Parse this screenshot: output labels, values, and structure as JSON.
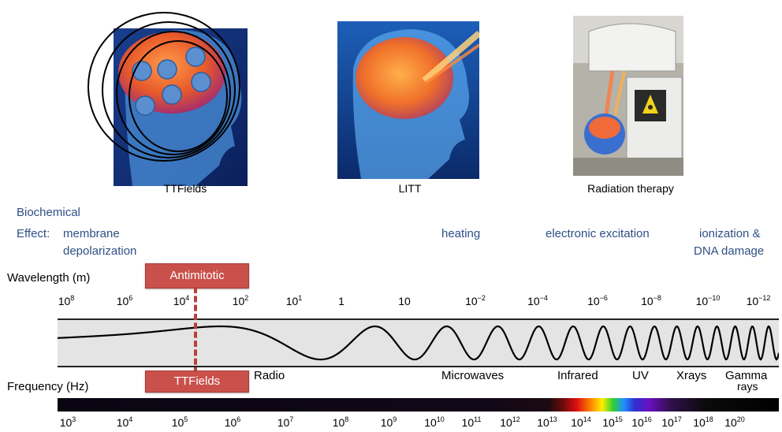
{
  "captions": {
    "ttfields": "TTFields",
    "litt": "LITT",
    "radiation": "Radiation therapy"
  },
  "effects": {
    "line1": "Biochemical",
    "effect_prefix": "Effect:",
    "membrane": "membrane",
    "depolarization": "depolarization",
    "heating": "heating",
    "electronic": "electronic excitation",
    "ionization": "ionization &",
    "dna": "DNA damage"
  },
  "wavelength": {
    "label": "Wavelength (m)",
    "ticks": [
      {
        "base": "10",
        "exp": "8"
      },
      {
        "base": "10",
        "exp": "6"
      },
      {
        "base": "10",
        "exp": "4"
      },
      {
        "base": "10",
        "exp": "2"
      },
      {
        "base": "10",
        "exp": "1"
      },
      {
        "base": "1",
        "exp": ""
      },
      {
        "base": "10",
        "exp": ""
      },
      {
        "base": "10",
        "exp": "−2"
      },
      {
        "base": "10",
        "exp": "−4"
      },
      {
        "base": "10",
        "exp": "−6"
      },
      {
        "base": "10",
        "exp": "−8"
      },
      {
        "base": "10",
        "exp": "−10"
      },
      {
        "base": "10",
        "exp": "−12"
      }
    ]
  },
  "frequency": {
    "label": "Frequency (Hz)",
    "ticks": [
      {
        "base": "10",
        "exp": "3"
      },
      {
        "base": "10",
        "exp": "4"
      },
      {
        "base": "10",
        "exp": "5"
      },
      {
        "base": "10",
        "exp": "6"
      },
      {
        "base": "10",
        "exp": "7"
      },
      {
        "base": "10",
        "exp": "8"
      },
      {
        "base": "10",
        "exp": "9"
      },
      {
        "base": "10",
        "exp": "10"
      },
      {
        "base": "10",
        "exp": "11"
      },
      {
        "base": "10",
        "exp": "12"
      },
      {
        "base": "10",
        "exp": "13"
      },
      {
        "base": "10",
        "exp": "14"
      },
      {
        "base": "10",
        "exp": "15"
      },
      {
        "base": "10",
        "exp": "16"
      },
      {
        "base": "10",
        "exp": "17"
      },
      {
        "base": "10",
        "exp": "18"
      },
      {
        "base": "10",
        "exp": "20"
      }
    ]
  },
  "bands": {
    "radio": "Radio",
    "microwaves": "Microwaves",
    "infrared": "Infrared",
    "uv": "UV",
    "xrays": "Xrays",
    "gamma1": "Gamma",
    "gamma2": "rays"
  },
  "markers": {
    "antimitotic": "Antimitotic",
    "ttfields": "TTFields"
  },
  "colors": {
    "effect_text": "#2e4f86",
    "marker": "#c9504b",
    "wave_band": "#e4e4e4"
  }
}
